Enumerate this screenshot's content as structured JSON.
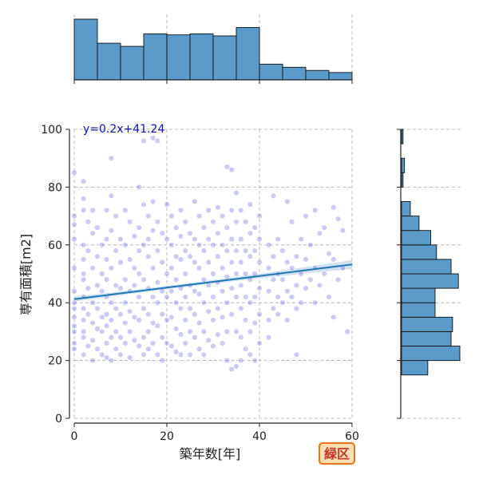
{
  "chart_data": {
    "type": "scatter",
    "xlabel": "築年数[年]",
    "ylabel": "専有面積[m2]",
    "xlim": [
      0,
      60
    ],
    "ylim": [
      0,
      100
    ],
    "x_ticks": [
      0,
      20,
      40,
      60
    ],
    "y_ticks": [
      0,
      20,
      40,
      60,
      80,
      100
    ],
    "grid": true,
    "regression": {
      "label": "y=0.2x+41.24",
      "slope": 0.2,
      "intercept": 41.24
    },
    "badge": "緑区",
    "colors": {
      "points": "#5b5fd6",
      "hist_fill": "#5b9bc9",
      "line": "#1f77b4",
      "band": "#a9cbe6",
      "badge_bg": "#ffe0b3",
      "badge_border": "#e8731a"
    },
    "marginal_x_hist": {
      "bin_edges": [
        0,
        5,
        10,
        15,
        20,
        25,
        30,
        35,
        40,
        45,
        50,
        55,
        60
      ],
      "counts": [
        58,
        35,
        32,
        44,
        43,
        44,
        42,
        50,
        15,
        12,
        9,
        7
      ]
    },
    "marginal_y_hist": {
      "bin_edges": [
        15,
        20,
        25,
        30,
        35,
        40,
        45,
        50,
        55,
        60,
        65,
        70,
        75,
        80,
        85,
        90,
        95,
        100
      ],
      "counts": [
        18,
        40,
        34,
        35,
        23,
        23,
        39,
        34,
        24,
        20,
        12,
        6,
        0,
        1,
        2,
        0,
        1
      ]
    },
    "points": [
      [
        0,
        85
      ],
      [
        0,
        70
      ],
      [
        0,
        67
      ],
      [
        0,
        62
      ],
      [
        0,
        52
      ],
      [
        0,
        44
      ],
      [
        0,
        40
      ],
      [
        0,
        38
      ],
      [
        0,
        35
      ],
      [
        0,
        32
      ],
      [
        0,
        30
      ],
      [
        0,
        26
      ],
      [
        0,
        24
      ],
      [
        2,
        82
      ],
      [
        2,
        76
      ],
      [
        2,
        72
      ],
      [
        2,
        60
      ],
      [
        2,
        55
      ],
      [
        2,
        50
      ],
      [
        2,
        48
      ],
      [
        2,
        42
      ],
      [
        2,
        38
      ],
      [
        2,
        34
      ],
      [
        2,
        30
      ],
      [
        2,
        28
      ],
      [
        2,
        22
      ],
      [
        3,
        68
      ],
      [
        3,
        58
      ],
      [
        3,
        45
      ],
      [
        3,
        36
      ],
      [
        3,
        25
      ],
      [
        4,
        72
      ],
      [
        4,
        64
      ],
      [
        4,
        52
      ],
      [
        4,
        40
      ],
      [
        4,
        33
      ],
      [
        4,
        27
      ],
      [
        4,
        20
      ],
      [
        5,
        66
      ],
      [
        5,
        56
      ],
      [
        5,
        46
      ],
      [
        5,
        38
      ],
      [
        5,
        31
      ],
      [
        5,
        24
      ],
      [
        6,
        60
      ],
      [
        6,
        50
      ],
      [
        6,
        44
      ],
      [
        6,
        35
      ],
      [
        6,
        30
      ],
      [
        6,
        22
      ],
      [
        7,
        72
      ],
      [
        7,
        62
      ],
      [
        7,
        55
      ],
      [
        7,
        48
      ],
      [
        7,
        42
      ],
      [
        7,
        36
      ],
      [
        7,
        32
      ],
      [
        7,
        26
      ],
      [
        7,
        21
      ],
      [
        8,
        90
      ],
      [
        8,
        77
      ],
      [
        8,
        65
      ],
      [
        8,
        52
      ],
      [
        8,
        40
      ],
      [
        8,
        34
      ],
      [
        8,
        28
      ],
      [
        8,
        20
      ],
      [
        9,
        70
      ],
      [
        9,
        58
      ],
      [
        9,
        46
      ],
      [
        9,
        38
      ],
      [
        9,
        30
      ],
      [
        9,
        24
      ],
      [
        10,
        62
      ],
      [
        10,
        54
      ],
      [
        10,
        45
      ],
      [
        10,
        36
      ],
      [
        10,
        28
      ],
      [
        10,
        22
      ],
      [
        11,
        72
      ],
      [
        11,
        60
      ],
      [
        11,
        48
      ],
      [
        11,
        40
      ],
      [
        11,
        33
      ],
      [
        11,
        26
      ],
      [
        12,
        68
      ],
      [
        12,
        55
      ],
      [
        12,
        44
      ],
      [
        12,
        37
      ],
      [
        12,
        30
      ],
      [
        12,
        21
      ],
      [
        13,
        63
      ],
      [
        13,
        52
      ],
      [
        13,
        46
      ],
      [
        13,
        35
      ],
      [
        13,
        27
      ],
      [
        14,
        80
      ],
      [
        14,
        66
      ],
      [
        14,
        58
      ],
      [
        14,
        50
      ],
      [
        14,
        42
      ],
      [
        14,
        34
      ],
      [
        14,
        25
      ],
      [
        15,
        96
      ],
      [
        15,
        74
      ],
      [
        15,
        60
      ],
      [
        15,
        48
      ],
      [
        15,
        38
      ],
      [
        15,
        28
      ],
      [
        15,
        22
      ],
      [
        16,
        70
      ],
      [
        16,
        62
      ],
      [
        16,
        56
      ],
      [
        16,
        45
      ],
      [
        16,
        36
      ],
      [
        16,
        30
      ],
      [
        16,
        24
      ],
      [
        17,
        97
      ],
      [
        17,
        75
      ],
      [
        17,
        65
      ],
      [
        17,
        52
      ],
      [
        17,
        42
      ],
      [
        17,
        33
      ],
      [
        17,
        26
      ],
      [
        18,
        96
      ],
      [
        18,
        68
      ],
      [
        18,
        58
      ],
      [
        18,
        47
      ],
      [
        18,
        40
      ],
      [
        18,
        32
      ],
      [
        18,
        22
      ],
      [
        19,
        64
      ],
      [
        19,
        54
      ],
      [
        19,
        44
      ],
      [
        19,
        36
      ],
      [
        19,
        28
      ],
      [
        19,
        20
      ],
      [
        20,
        74
      ],
      [
        20,
        62
      ],
      [
        20,
        50
      ],
      [
        20,
        42
      ],
      [
        20,
        34
      ],
      [
        20,
        26
      ],
      [
        21,
        70
      ],
      [
        21,
        60
      ],
      [
        21,
        52
      ],
      [
        21,
        44
      ],
      [
        21,
        35
      ],
      [
        21,
        25
      ],
      [
        22,
        66
      ],
      [
        22,
        56
      ],
      [
        22,
        48
      ],
      [
        22,
        40
      ],
      [
        22,
        31
      ],
      [
        22,
        23
      ],
      [
        23,
        72
      ],
      [
        23,
        63
      ],
      [
        23,
        55
      ],
      [
        23,
        45
      ],
      [
        23,
        38
      ],
      [
        23,
        29
      ],
      [
        23,
        22
      ],
      [
        24,
        68
      ],
      [
        24,
        58
      ],
      [
        24,
        50
      ],
      [
        24,
        42
      ],
      [
        24,
        34
      ],
      [
        24,
        26
      ],
      [
        25,
        64
      ],
      [
        25,
        56
      ],
      [
        25,
        46
      ],
      [
        25,
        38
      ],
      [
        25,
        30
      ],
      [
        25,
        22
      ],
      [
        26,
        75
      ],
      [
        26,
        62
      ],
      [
        26,
        54
      ],
      [
        26,
        44
      ],
      [
        26,
        36
      ],
      [
        26,
        28
      ],
      [
        27,
        70
      ],
      [
        27,
        60
      ],
      [
        27,
        52
      ],
      [
        27,
        43
      ],
      [
        27,
        33
      ],
      [
        27,
        24
      ],
      [
        28,
        66
      ],
      [
        28,
        58
      ],
      [
        28,
        48
      ],
      [
        28,
        40
      ],
      [
        28,
        30
      ],
      [
        28,
        22
      ],
      [
        29,
        72
      ],
      [
        29,
        62
      ],
      [
        29,
        54
      ],
      [
        29,
        46
      ],
      [
        29,
        37
      ],
      [
        29,
        27
      ],
      [
        30,
        68
      ],
      [
        30,
        60
      ],
      [
        30,
        50
      ],
      [
        30,
        42
      ],
      [
        30,
        34
      ],
      [
        30,
        25
      ],
      [
        31,
        73
      ],
      [
        31,
        64
      ],
      [
        31,
        56
      ],
      [
        31,
        47
      ],
      [
        31,
        38
      ],
      [
        31,
        29
      ],
      [
        32,
        70
      ],
      [
        32,
        60
      ],
      [
        32,
        52
      ],
      [
        32,
        44
      ],
      [
        32,
        35
      ],
      [
        32,
        26
      ],
      [
        33,
        87
      ],
      [
        33,
        66
      ],
      [
        33,
        58
      ],
      [
        33,
        49
      ],
      [
        33,
        40
      ],
      [
        33,
        30
      ],
      [
        33,
        20
      ],
      [
        34,
        86
      ],
      [
        34,
        72
      ],
      [
        34,
        62
      ],
      [
        34,
        54
      ],
      [
        34,
        45
      ],
      [
        34,
        36
      ],
      [
        34,
        17
      ],
      [
        35,
        78
      ],
      [
        35,
        68
      ],
      [
        35,
        58
      ],
      [
        35,
        50
      ],
      [
        35,
        42
      ],
      [
        35,
        30
      ],
      [
        35,
        18
      ],
      [
        36,
        72
      ],
      [
        36,
        62
      ],
      [
        36,
        54
      ],
      [
        36,
        46
      ],
      [
        36,
        38
      ],
      [
        36,
        28
      ],
      [
        36,
        20
      ],
      [
        37,
        68
      ],
      [
        37,
        58
      ],
      [
        37,
        50
      ],
      [
        37,
        42
      ],
      [
        37,
        34
      ],
      [
        37,
        24
      ],
      [
        38,
        74
      ],
      [
        38,
        64
      ],
      [
        38,
        56
      ],
      [
        38,
        48
      ],
      [
        38,
        40
      ],
      [
        38,
        30
      ],
      [
        38,
        22
      ],
      [
        39,
        66
      ],
      [
        39,
        58
      ],
      [
        39,
        50
      ],
      [
        39,
        42
      ],
      [
        39,
        33
      ],
      [
        39,
        20
      ],
      [
        40,
        70
      ],
      [
        40,
        62
      ],
      [
        40,
        54
      ],
      [
        40,
        45
      ],
      [
        40,
        36
      ],
      [
        40,
        26
      ],
      [
        42,
        60
      ],
      [
        42,
        52
      ],
      [
        42,
        44
      ],
      [
        42,
        34
      ],
      [
        42,
        28
      ],
      [
        43,
        77
      ],
      [
        43,
        56
      ],
      [
        43,
        48
      ],
      [
        43,
        38
      ],
      [
        44,
        62
      ],
      [
        44,
        50
      ],
      [
        44,
        42
      ],
      [
        44,
        36
      ],
      [
        45,
        58
      ],
      [
        45,
        48
      ],
      [
        45,
        40
      ],
      [
        46,
        75
      ],
      [
        46,
        54
      ],
      [
        46,
        44
      ],
      [
        46,
        34
      ],
      [
        47,
        68
      ],
      [
        47,
        52
      ],
      [
        47,
        42
      ],
      [
        48,
        56
      ],
      [
        48,
        46
      ],
      [
        48,
        38
      ],
      [
        48,
        22
      ],
      [
        49,
        62
      ],
      [
        49,
        50
      ],
      [
        49,
        40
      ],
      [
        50,
        70
      ],
      [
        50,
        55
      ],
      [
        50,
        45
      ],
      [
        51,
        60
      ],
      [
        51,
        48
      ],
      [
        52,
        72
      ],
      [
        52,
        52
      ],
      [
        52,
        40
      ],
      [
        53,
        64
      ],
      [
        53,
        46
      ],
      [
        54,
        66
      ],
      [
        54,
        50
      ],
      [
        55,
        57
      ],
      [
        55,
        42
      ],
      [
        56,
        73
      ],
      [
        56,
        55
      ],
      [
        56,
        35
      ],
      [
        57,
        69
      ],
      [
        57,
        48
      ],
      [
        58,
        65
      ],
      [
        58,
        52
      ],
      [
        59,
        30
      ]
    ]
  }
}
